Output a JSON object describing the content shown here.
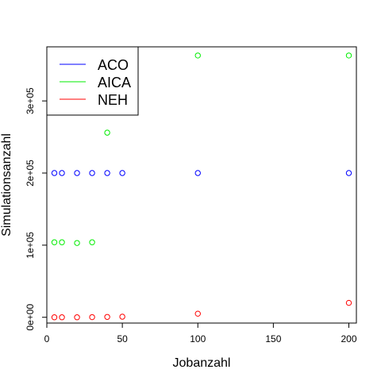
{
  "chart_data": {
    "type": "scatter",
    "title": "",
    "xlabel": "Jobanzahl",
    "ylabel": "Simulationsanzahl",
    "xlim": [
      0,
      205
    ],
    "ylim": [
      -8000,
      375000
    ],
    "x_ticks": [
      0,
      50,
      100,
      150,
      200
    ],
    "x_tick_labels": [
      "0",
      "50",
      "100",
      "150",
      "200"
    ],
    "y_ticks": [
      0,
      100000,
      200000,
      300000
    ],
    "y_tick_labels": [
      "0e+00",
      "1e+05",
      "2e+05",
      "3e+05"
    ],
    "grid": false,
    "legend": "top-left",
    "series": [
      {
        "name": "ACO",
        "color": "#0000ff",
        "points": [
          [
            5,
            200000
          ],
          [
            10,
            200000
          ],
          [
            20,
            200000
          ],
          [
            30,
            200000
          ],
          [
            40,
            200000
          ],
          [
            50,
            200000
          ],
          [
            100,
            200000
          ],
          [
            200,
            200000
          ]
        ]
      },
      {
        "name": "AICA",
        "color": "#00ee00",
        "points": [
          [
            5,
            104000
          ],
          [
            10,
            104000
          ],
          [
            20,
            103000
          ],
          [
            30,
            104000
          ],
          [
            40,
            256000
          ],
          [
            100,
            363000
          ],
          [
            200,
            363000
          ]
        ]
      },
      {
        "name": "NEH",
        "color": "#ff0000",
        "points": [
          [
            5,
            0
          ],
          [
            10,
            0
          ],
          [
            20,
            0
          ],
          [
            30,
            200
          ],
          [
            40,
            500
          ],
          [
            50,
            800
          ],
          [
            100,
            5000
          ],
          [
            200,
            20000
          ]
        ]
      }
    ]
  }
}
